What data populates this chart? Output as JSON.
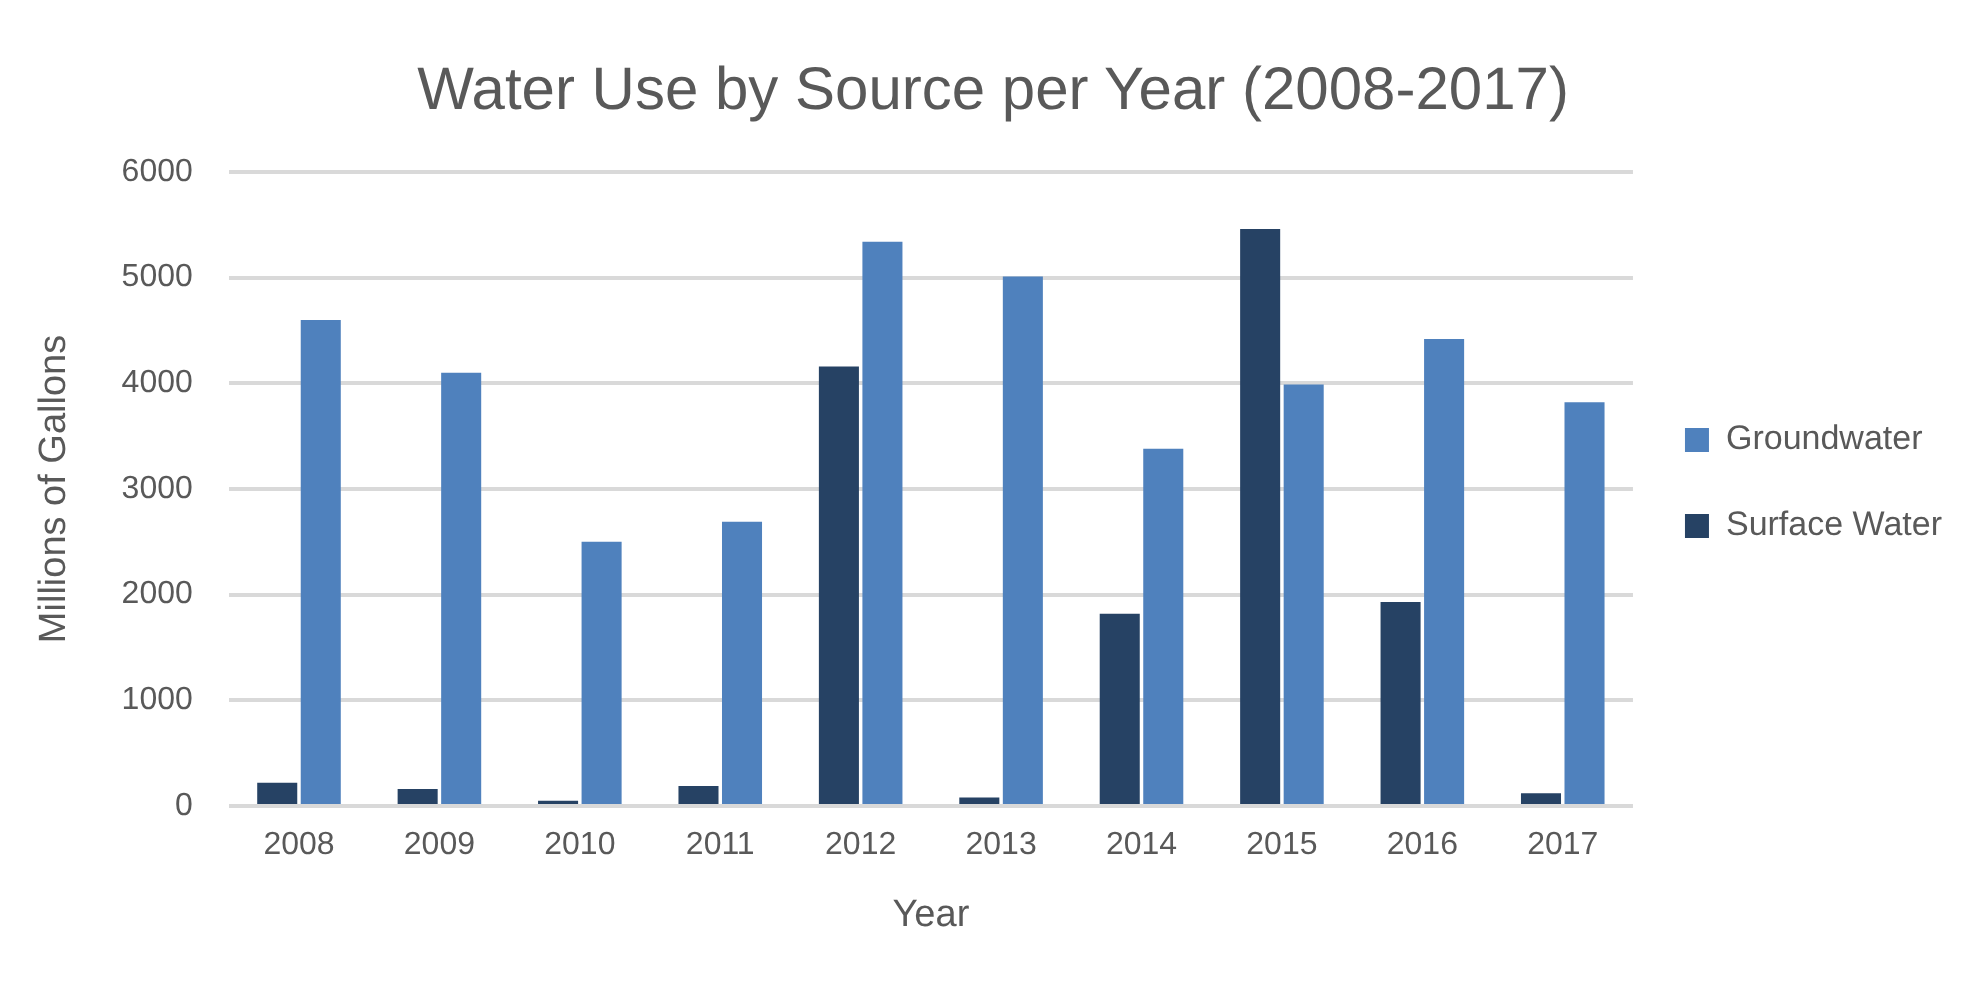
{
  "chart_data": {
    "type": "bar",
    "title": "Water Use by Source per Year (2008-2017)",
    "xlabel": "Year",
    "ylabel": "Millions of Gallons",
    "categories": [
      "2008",
      "2009",
      "2010",
      "2011",
      "2012",
      "2013",
      "2014",
      "2015",
      "2016",
      "2017"
    ],
    "series": [
      {
        "name": "Surface Water",
        "color": "#264264",
        "values": [
          220,
          160,
          50,
          190,
          4160,
          80,
          1820,
          5460,
          1930,
          120
        ]
      },
      {
        "name": "Groundwater",
        "color": "#4f81bd",
        "values": [
          4600,
          4100,
          2500,
          2690,
          5340,
          5010,
          3380,
          3990,
          4420,
          3820
        ]
      }
    ],
    "ylim": [
      0,
      6000
    ],
    "yticks": [
      0,
      1000,
      2000,
      3000,
      4000,
      5000,
      6000
    ],
    "grid": "y",
    "legend": "right"
  }
}
